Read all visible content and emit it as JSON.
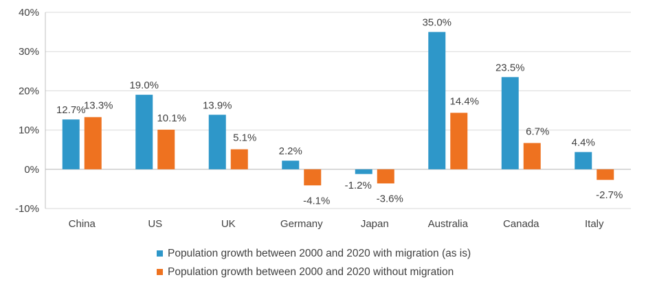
{
  "chart_data": {
    "type": "bar",
    "categories": [
      "China",
      "US",
      "UK",
      "Germany",
      "Japan",
      "Australia",
      "Canada",
      "Italy"
    ],
    "series": [
      {
        "name": "Population growth between 2000 and 2020 with migration (as is)",
        "values": [
          12.7,
          19.0,
          13.9,
          2.2,
          -1.2,
          35.0,
          23.5,
          4.4
        ],
        "labels": [
          "12.7%",
          "19.0%",
          "13.9%",
          "2.2%",
          "-1.2%",
          "35.0%",
          "23.5%",
          "4.4%"
        ],
        "color": "#2E97C9"
      },
      {
        "name": "Population growth between 2000 and 2020 without migration",
        "values": [
          13.3,
          10.1,
          5.1,
          -4.1,
          -3.6,
          14.4,
          6.7,
          -2.7
        ],
        "labels": [
          "13.3%",
          "10.1%",
          "5.1%",
          "-4.1%",
          "-3.6%",
          "14.4%",
          "6.7%",
          "-2.7%"
        ],
        "color": "#EE7220"
      }
    ],
    "title": "",
    "xlabel": "",
    "ylabel": "",
    "ylim": [
      -10,
      40
    ],
    "yticks": [
      -10,
      0,
      10,
      20,
      30,
      40
    ],
    "ytick_labels": [
      "-10%",
      "0%",
      "10%",
      "20%",
      "30%",
      "40%"
    ],
    "grid": true,
    "legend": "bottom"
  }
}
